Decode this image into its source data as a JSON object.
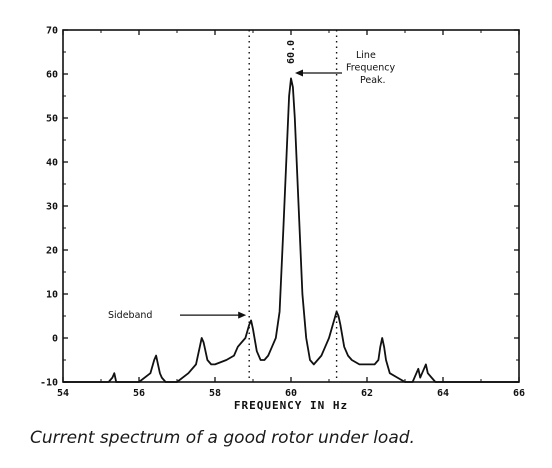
{
  "chart_data": {
    "type": "line",
    "title": "",
    "xlabel": "FREQUENCY IN Hz",
    "ylabel": "",
    "xlim": [
      54,
      66
    ],
    "ylim": [
      -10,
      70
    ],
    "xticks": [
      54,
      56,
      58,
      60,
      62,
      64,
      66
    ],
    "yticks": [
      -10,
      0,
      10,
      20,
      30,
      40,
      50,
      60,
      70
    ],
    "ytick_labels": [
      "-10",
      "0",
      "10",
      "20",
      "30",
      "40",
      "50",
      "60",
      "70"
    ],
    "grid": false,
    "reference_lines_x": [
      58.9,
      61.2
    ],
    "peak_label": "60.0",
    "annotations": [
      {
        "text_lines": [
          "Line",
          "Frequency",
          "Peak."
        ],
        "x": 60.0,
        "y": 60
      },
      {
        "text_lines": [
          "Sideband"
        ],
        "x": 58.9,
        "y": 3.5
      }
    ],
    "series": [
      {
        "x": [
          54.0,
          55.2,
          55.3,
          55.35,
          55.4,
          55.5,
          56.0,
          56.3,
          56.4,
          56.45,
          56.5,
          56.55,
          56.6,
          56.7,
          57.0,
          57.3,
          57.5,
          57.6,
          57.65,
          57.7,
          57.75,
          57.8,
          57.9,
          58.0,
          58.3,
          58.5,
          58.6,
          58.7,
          58.8,
          58.9,
          58.95,
          59.0,
          59.1,
          59.2,
          59.3,
          59.4,
          59.5,
          59.6,
          59.7,
          59.8,
          59.9,
          59.95,
          60.0,
          60.05,
          60.1,
          60.2,
          60.3,
          60.4,
          60.5,
          60.6,
          60.7,
          60.8,
          60.9,
          61.0,
          61.1,
          61.2,
          61.25,
          61.3,
          61.4,
          61.5,
          61.6,
          61.8,
          62.0,
          62.2,
          62.3,
          62.35,
          62.4,
          62.45,
          62.5,
          62.6,
          62.8,
          63.0,
          63.2,
          63.3,
          63.35,
          63.4,
          63.45,
          63.5,
          63.55,
          63.6,
          63.7,
          63.8,
          64.0,
          66.0
        ],
        "y": [
          -10,
          -10,
          -9,
          -8,
          -10,
          -10,
          -10,
          -8,
          -5,
          -4,
          -6,
          -8,
          -9,
          -10,
          -10,
          -8,
          -6,
          -2,
          0,
          -1,
          -3,
          -5,
          -6,
          -6,
          -5,
          -4,
          -2,
          -1,
          0,
          3,
          4,
          2,
          -3,
          -5,
          -5,
          -4,
          -2,
          0,
          6,
          25,
          45,
          55,
          59,
          57,
          50,
          30,
          10,
          0,
          -5,
          -6,
          -5,
          -4,
          -2,
          0,
          3,
          6,
          5,
          3,
          -2,
          -4,
          -5,
          -6,
          -6,
          -6,
          -5,
          -2,
          0,
          -2,
          -5,
          -8,
          -9,
          -10,
          -10,
          -8,
          -7,
          -9,
          -8,
          -7,
          -6,
          -8,
          -9,
          -10,
          -10,
          -10
        ]
      }
    ]
  },
  "caption": "Current spectrum of a good rotor under load."
}
